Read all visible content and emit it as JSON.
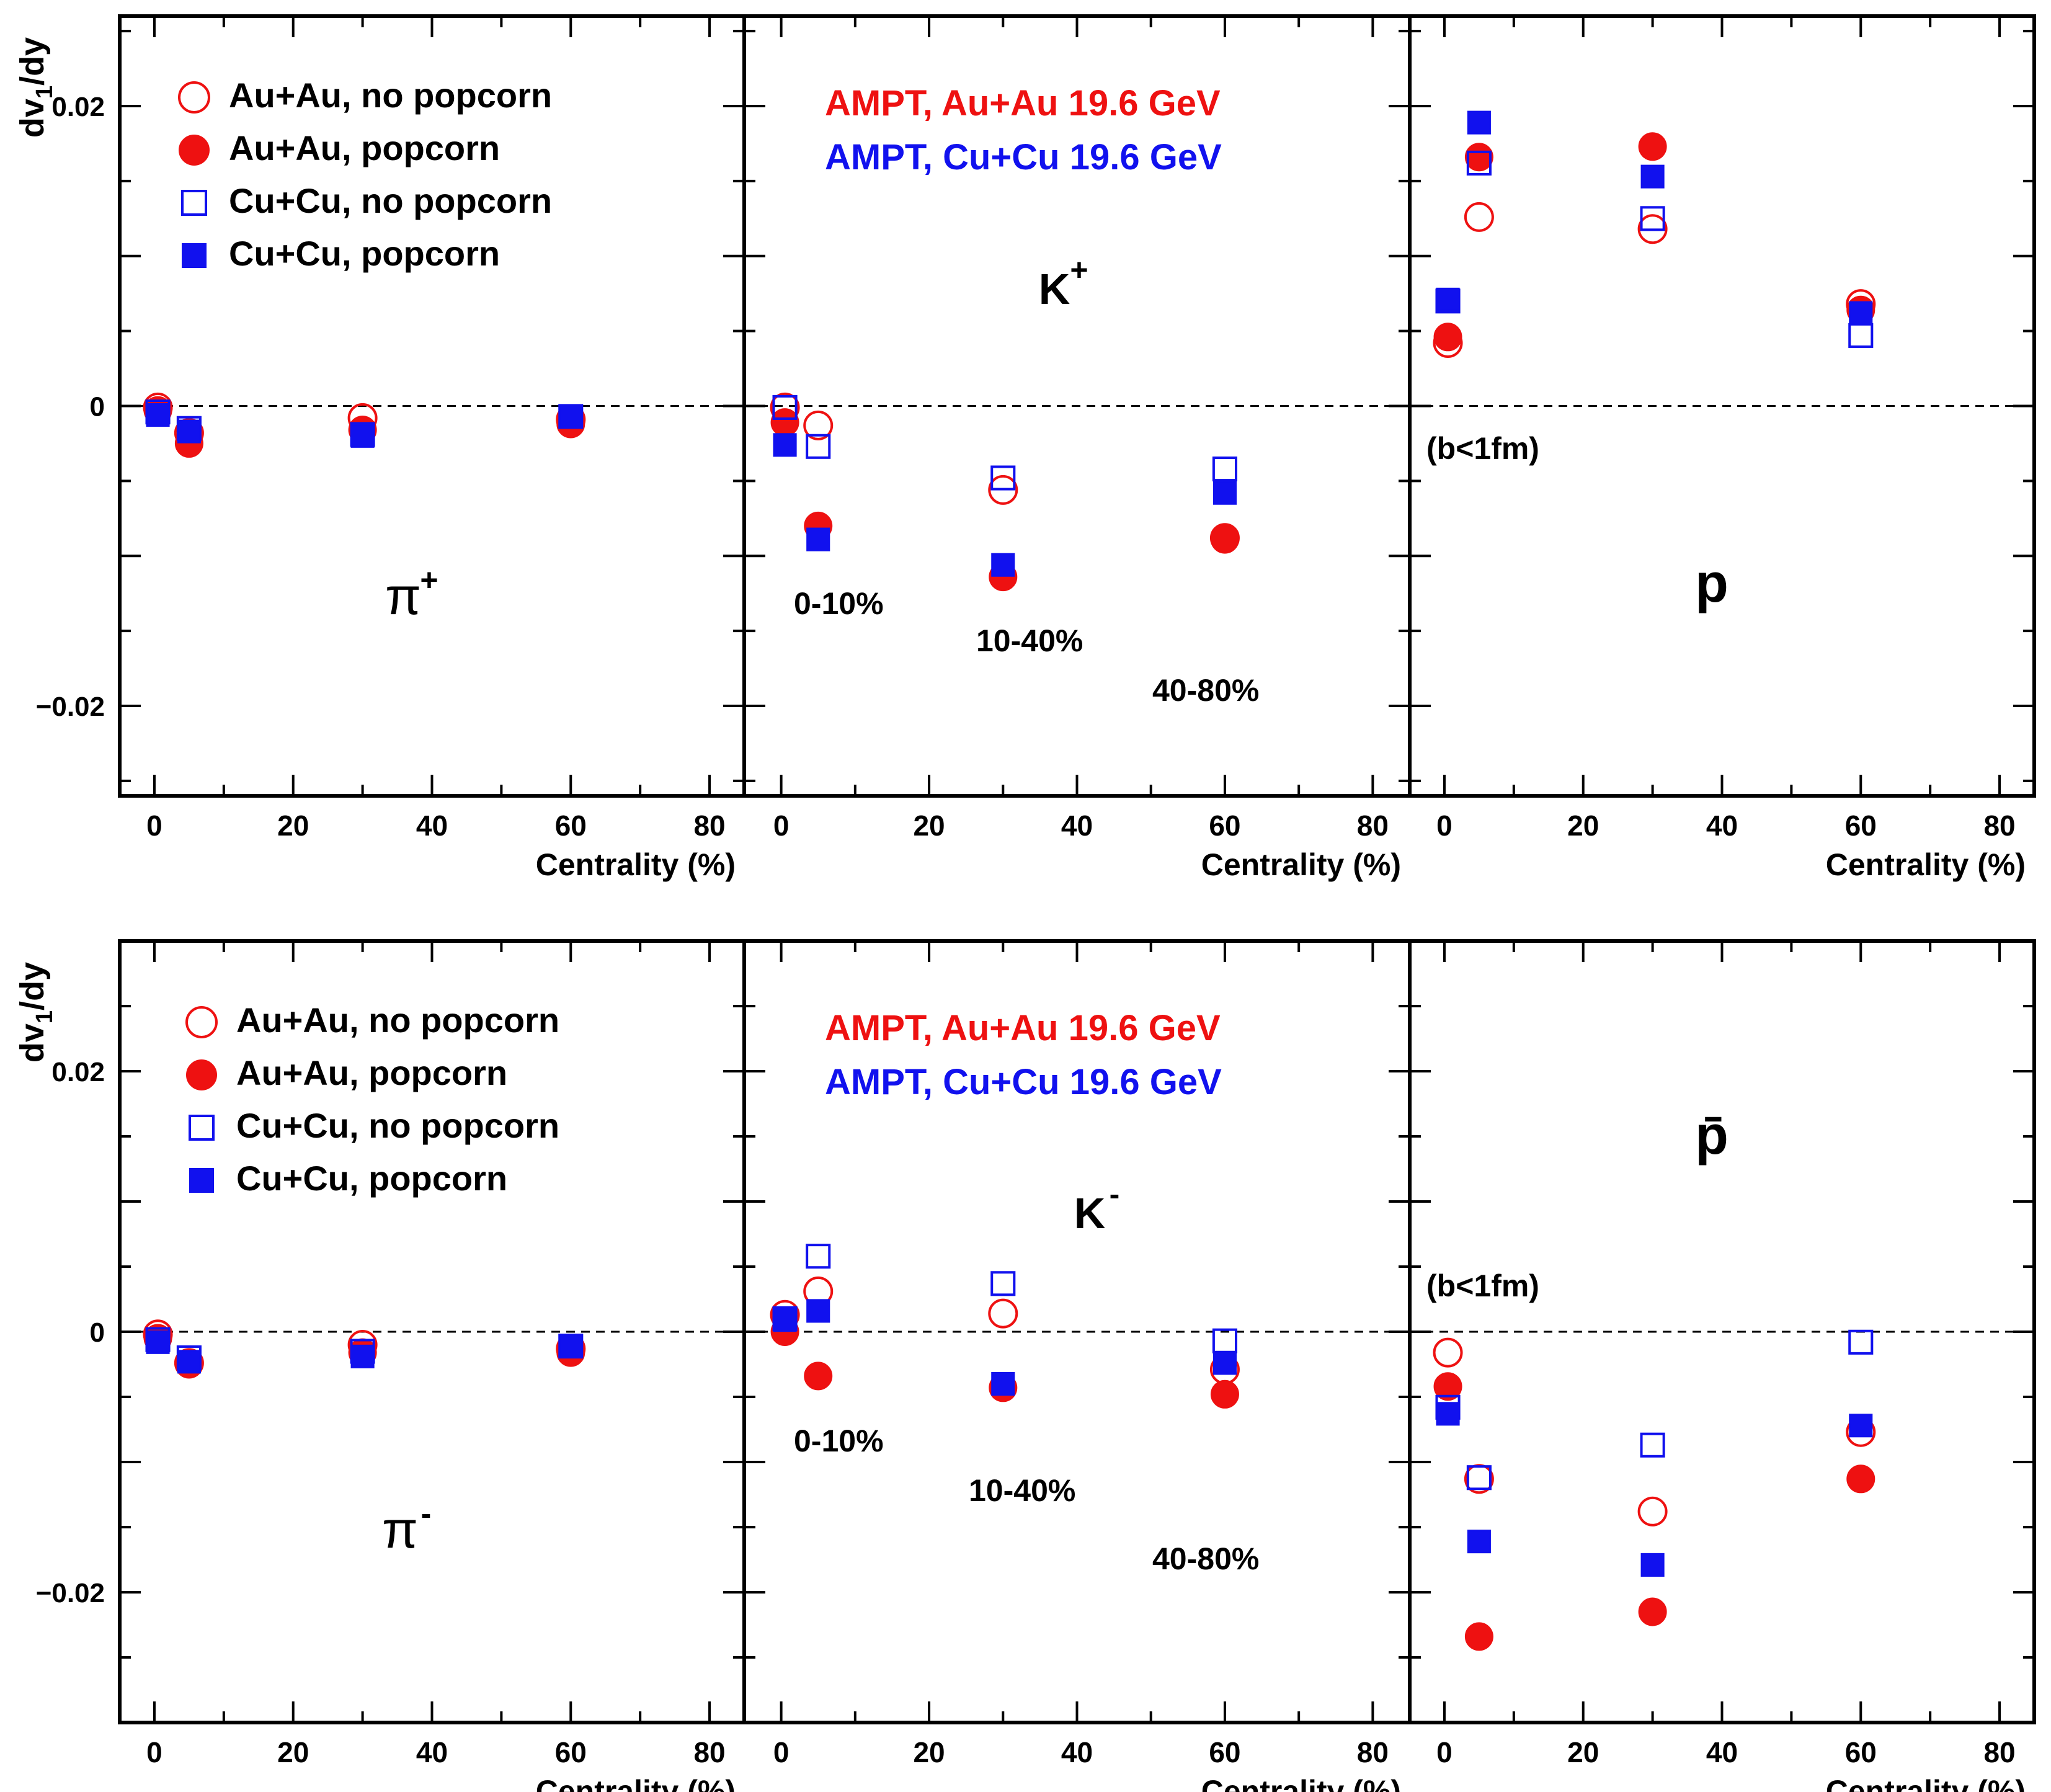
{
  "chart_data": [
    {
      "type": "scatter",
      "panel": "pi_plus",
      "particle": "π",
      "charge": "+",
      "ylabel": "dv1/dy",
      "xlabel": "Centrality (%)",
      "xlim": [
        -5,
        85
      ],
      "ylim": [
        -0.026,
        0.026
      ],
      "x_ticks": [
        "0",
        "20",
        "40",
        "60",
        "80"
      ],
      "y_ticks": [
        "0.02",
        "0",
        "−0.02"
      ],
      "y_tick_values": [
        0.02,
        0,
        -0.02
      ],
      "legend": [
        {
          "label": "Au+Au, no popcorn",
          "marker": "open-circle",
          "color": "#ee1111"
        },
        {
          "label": "Au+Au, popcorn",
          "marker": "filled-circle",
          "color": "#ee1111"
        },
        {
          "label": "Cu+Cu, no popcorn",
          "marker": "open-square",
          "color": "#1111ee"
        },
        {
          "label": "Cu+Cu, popcorn",
          "marker": "filled-square",
          "color": "#1111ee"
        }
      ],
      "series": [
        {
          "name": "Au+Au, no popcorn",
          "x": [
            0.5,
            5,
            30,
            60
          ],
          "y": [
            -0.0001,
            -0.0018,
            -0.0008,
            -0.0009
          ]
        },
        {
          "name": "Au+Au, popcorn",
          "x": [
            0.5,
            5,
            30,
            60
          ],
          "y": [
            -0.0003,
            -0.0025,
            -0.0016,
            -0.0012
          ]
        },
        {
          "name": "Cu+Cu, no popcorn",
          "x": [
            0.5,
            5,
            30,
            60
          ],
          "y": [
            -0.0004,
            -0.0015,
            -0.0019,
            -0.0007
          ]
        },
        {
          "name": "Cu+Cu, popcorn",
          "x": [
            0.5,
            5,
            30,
            60
          ],
          "y": [
            -0.0006,
            -0.0017,
            -0.002,
            -0.0007
          ]
        }
      ]
    },
    {
      "type": "scatter",
      "panel": "k_plus",
      "particle": "K",
      "charge": "+",
      "xlabel": "Centrality (%)",
      "xlim": [
        -5,
        85
      ],
      "ylim": [
        -0.026,
        0.026
      ],
      "x_ticks": [
        "0",
        "20",
        "40",
        "60",
        "80"
      ],
      "annotations": [
        "AMPT, Au+Au 19.6 GeV",
        "AMPT, Cu+Cu 19.6 GeV",
        "0-10%",
        "10-40%",
        "40-80%"
      ],
      "series": [
        {
          "name": "Au+Au, no popcorn",
          "x": [
            0.5,
            5,
            30,
            60
          ],
          "y": [
            -0.0001,
            -0.0013,
            -0.0056,
            -0.0088
          ]
        },
        {
          "name": "Au+Au, popcorn",
          "x": [
            0.5,
            5,
            30,
            60
          ],
          "y": [
            -0.0011,
            -0.008,
            -0.0114,
            -0.0089
          ]
        },
        {
          "name": "Cu+Cu, no popcorn",
          "x": [
            0.5,
            5,
            30,
            60
          ],
          "y": [
            -0.0001,
            -0.0027,
            -0.0048,
            -0.0042
          ]
        },
        {
          "name": "Cu+Cu, popcorn",
          "x": [
            0.5,
            5,
            30,
            60
          ],
          "y": [
            -0.0026,
            -0.0089,
            -0.0106,
            -0.0058
          ]
        }
      ]
    },
    {
      "type": "scatter",
      "panel": "proton",
      "particle": "p",
      "xlabel": "Centrality (%)",
      "xlim": [
        -5,
        85
      ],
      "ylim": [
        -0.026,
        0.026
      ],
      "x_ticks": [
        "0",
        "20",
        "40",
        "60",
        "80"
      ],
      "annotations": [
        "(b<1fm)"
      ],
      "series": [
        {
          "name": "Au+Au, no popcorn",
          "x": [
            0.5,
            5,
            30,
            60
          ],
          "y": [
            0.0042,
            0.0126,
            0.0118,
            0.0068
          ]
        },
        {
          "name": "Au+Au, popcorn",
          "x": [
            0.5,
            5,
            30,
            60
          ],
          "y": [
            0.0046,
            0.0166,
            0.0173,
            0.0064
          ]
        },
        {
          "name": "Cu+Cu, no popcorn",
          "x": [
            0.5,
            5,
            30,
            60
          ],
          "y": [
            0.007,
            0.0162,
            0.0125,
            0.0047
          ]
        },
        {
          "name": "Cu+Cu, popcorn",
          "x": [
            0.5,
            5,
            30,
            60
          ],
          "y": [
            0.0071,
            0.0189,
            0.0153,
            0.0062
          ]
        }
      ]
    },
    {
      "type": "scatter",
      "panel": "pi_minus",
      "particle": "π",
      "charge": "-",
      "ylabel": "dv1/dy",
      "xlabel": "Centrality (%)",
      "xlim": [
        -5,
        85
      ],
      "ylim": [
        -0.03,
        0.03
      ],
      "x_ticks": [
        "0",
        "20",
        "40",
        "60",
        "80"
      ],
      "y_ticks": [
        "0.02",
        "0",
        "−0.02"
      ],
      "y_tick_values": [
        0.02,
        0,
        -0.02
      ],
      "legend": [
        {
          "label": "Au+Au, no popcorn",
          "marker": "open-circle",
          "color": "#ee1111"
        },
        {
          "label": "Au+Au, popcorn",
          "marker": "filled-circle",
          "color": "#ee1111"
        },
        {
          "label": "Cu+Cu, no popcorn",
          "marker": "open-square",
          "color": "#1111ee"
        },
        {
          "label": "Cu+Cu, popcorn",
          "marker": "filled-square",
          "color": "#1111ee"
        }
      ],
      "series": [
        {
          "name": "Au+Au, no popcorn",
          "x": [
            0.5,
            5,
            30,
            60
          ],
          "y": [
            -0.0002,
            -0.0024,
            -0.001,
            -0.0013
          ]
        },
        {
          "name": "Au+Au, popcorn",
          "x": [
            0.5,
            5,
            30,
            60
          ],
          "y": [
            -0.0005,
            -0.0025,
            -0.0016,
            -0.0016
          ]
        },
        {
          "name": "Cu+Cu, no popcorn",
          "x": [
            0.5,
            5,
            30,
            60
          ],
          "y": [
            -0.0006,
            -0.002,
            -0.0015,
            -0.0011
          ]
        },
        {
          "name": "Cu+Cu, popcorn",
          "x": [
            0.5,
            5,
            30,
            60
          ],
          "y": [
            -0.0008,
            -0.0023,
            -0.0019,
            -0.0011
          ]
        }
      ]
    },
    {
      "type": "scatter",
      "panel": "k_minus",
      "particle": "K",
      "charge": "-",
      "xlabel": "Centrality (%)",
      "xlim": [
        -5,
        85
      ],
      "ylim": [
        -0.03,
        0.03
      ],
      "x_ticks": [
        "0",
        "20",
        "40",
        "60",
        "80"
      ],
      "annotations": [
        "AMPT, Au+Au 19.6 GeV",
        "AMPT, Cu+Cu 19.6 GeV",
        "0-10%",
        "10-40%",
        "40-80%"
      ],
      "series": [
        {
          "name": "Au+Au, no popcorn",
          "x": [
            0.5,
            5,
            30,
            60
          ],
          "y": [
            0.0013,
            0.0031,
            0.0014,
            -0.0029
          ]
        },
        {
          "name": "Au+Au, popcorn",
          "x": [
            0.5,
            5,
            30,
            60
          ],
          "y": [
            0.0,
            -0.0034,
            -0.0043,
            -0.0048
          ]
        },
        {
          "name": "Cu+Cu, no popcorn",
          "x": [
            0.5,
            5,
            30,
            60
          ],
          "y": [
            0.001,
            0.0058,
            0.0037,
            -0.0007
          ]
        },
        {
          "name": "Cu+Cu, popcorn",
          "x": [
            0.5,
            5,
            30,
            60
          ],
          "y": [
            0.0009,
            0.0016,
            -0.004,
            -0.0024
          ]
        }
      ]
    },
    {
      "type": "scatter",
      "panel": "antiproton",
      "particle": "p̄",
      "xlabel": "Centrality (%)",
      "xlim": [
        -5,
        85
      ],
      "ylim": [
        -0.03,
        0.03
      ],
      "x_ticks": [
        "0",
        "20",
        "40",
        "60",
        "80"
      ],
      "annotations": [
        "(b<1fm)"
      ],
      "series": [
        {
          "name": "Au+Au, no popcorn",
          "x": [
            0.5,
            5,
            30,
            60
          ],
          "y": [
            -0.0016,
            -0.0113,
            -0.0138,
            -0.0077
          ]
        },
        {
          "name": "Au+Au, popcorn",
          "x": [
            0.5,
            5,
            30,
            60
          ],
          "y": [
            -0.0042,
            -0.0234,
            -0.0215,
            -0.0113
          ]
        },
        {
          "name": "Cu+Cu, no popcorn",
          "x": [
            0.5,
            5,
            30,
            60
          ],
          "y": [
            -0.0058,
            -0.0112,
            -0.0087,
            -0.0008
          ]
        },
        {
          "name": "Cu+Cu, popcorn",
          "x": [
            0.5,
            5,
            30,
            60
          ],
          "y": [
            -0.0063,
            -0.0161,
            -0.0179,
            -0.0072
          ]
        }
      ]
    }
  ],
  "colors": {
    "red": "#ee1111",
    "blue": "#1111ee"
  }
}
